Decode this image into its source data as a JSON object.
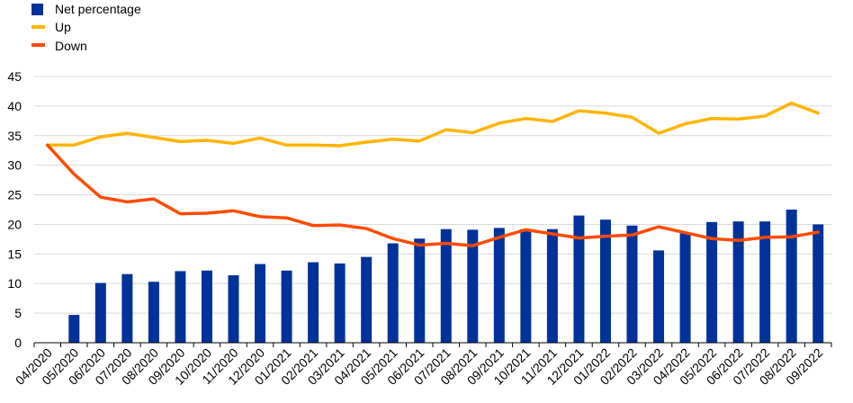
{
  "chart_data": {
    "type": "bar+line",
    "categories": [
      "04/2020",
      "05/2020",
      "06/2020",
      "07/2020",
      "08/2020",
      "09/2020",
      "10/2020",
      "11/2020",
      "12/2020",
      "01/2021",
      "02/2021",
      "03/2021",
      "04/2021",
      "05/2021",
      "06/2021",
      "07/2021",
      "08/2021",
      "09/2021",
      "10/2021",
      "11/2021",
      "12/2021",
      "01/2022",
      "02/2022",
      "03/2022",
      "04/2022",
      "05/2022",
      "06/2022",
      "07/2022",
      "08/2022",
      "09/2022"
    ],
    "series": [
      {
        "name": "Net percentage",
        "kind": "bar",
        "color": "#003299",
        "values": [
          null,
          4.7,
          10.1,
          11.6,
          10.3,
          12.1,
          12.2,
          11.4,
          13.3,
          12.2,
          13.6,
          13.4,
          14.5,
          16.8,
          17.6,
          19.2,
          19.1,
          19.4,
          19.2,
          19.2,
          21.5,
          20.8,
          19.8,
          15.6,
          18.5,
          20.4,
          20.5,
          20.5,
          22.5,
          20.0
        ]
      },
      {
        "name": "Up",
        "kind": "line",
        "color": "#FFB400",
        "values": [
          33.4,
          33.4,
          34.8,
          35.4,
          34.7,
          34.0,
          34.2,
          33.7,
          34.6,
          33.4,
          33.4,
          33.3,
          33.9,
          34.4,
          34.1,
          36.0,
          35.5,
          37.1,
          37.9,
          37.4,
          39.2,
          38.8,
          38.1,
          35.4,
          37.0,
          37.9,
          37.8,
          38.3,
          40.5,
          38.8
        ]
      },
      {
        "name": "Down",
        "kind": "line",
        "color": "#FF4B00",
        "values": [
          33.4,
          28.5,
          24.6,
          23.8,
          24.3,
          21.8,
          21.9,
          22.3,
          21.3,
          21.1,
          19.8,
          19.9,
          19.3,
          17.6,
          16.5,
          16.8,
          16.4,
          17.8,
          19.1,
          18.4,
          17.7,
          18.0,
          18.2,
          19.6,
          18.6,
          17.6,
          17.3,
          17.8,
          17.9,
          18.7
        ]
      }
    ],
    "legend": [
      "Net percentage",
      "Up",
      "Down"
    ],
    "legend_position": "top-left",
    "yticks": [
      "0",
      "5",
      "10",
      "15",
      "20",
      "25",
      "30",
      "35",
      "40",
      "45"
    ],
    "ylim": [
      0,
      45
    ],
    "grid": true,
    "title": "",
    "xlabel": "",
    "ylabel": ""
  }
}
